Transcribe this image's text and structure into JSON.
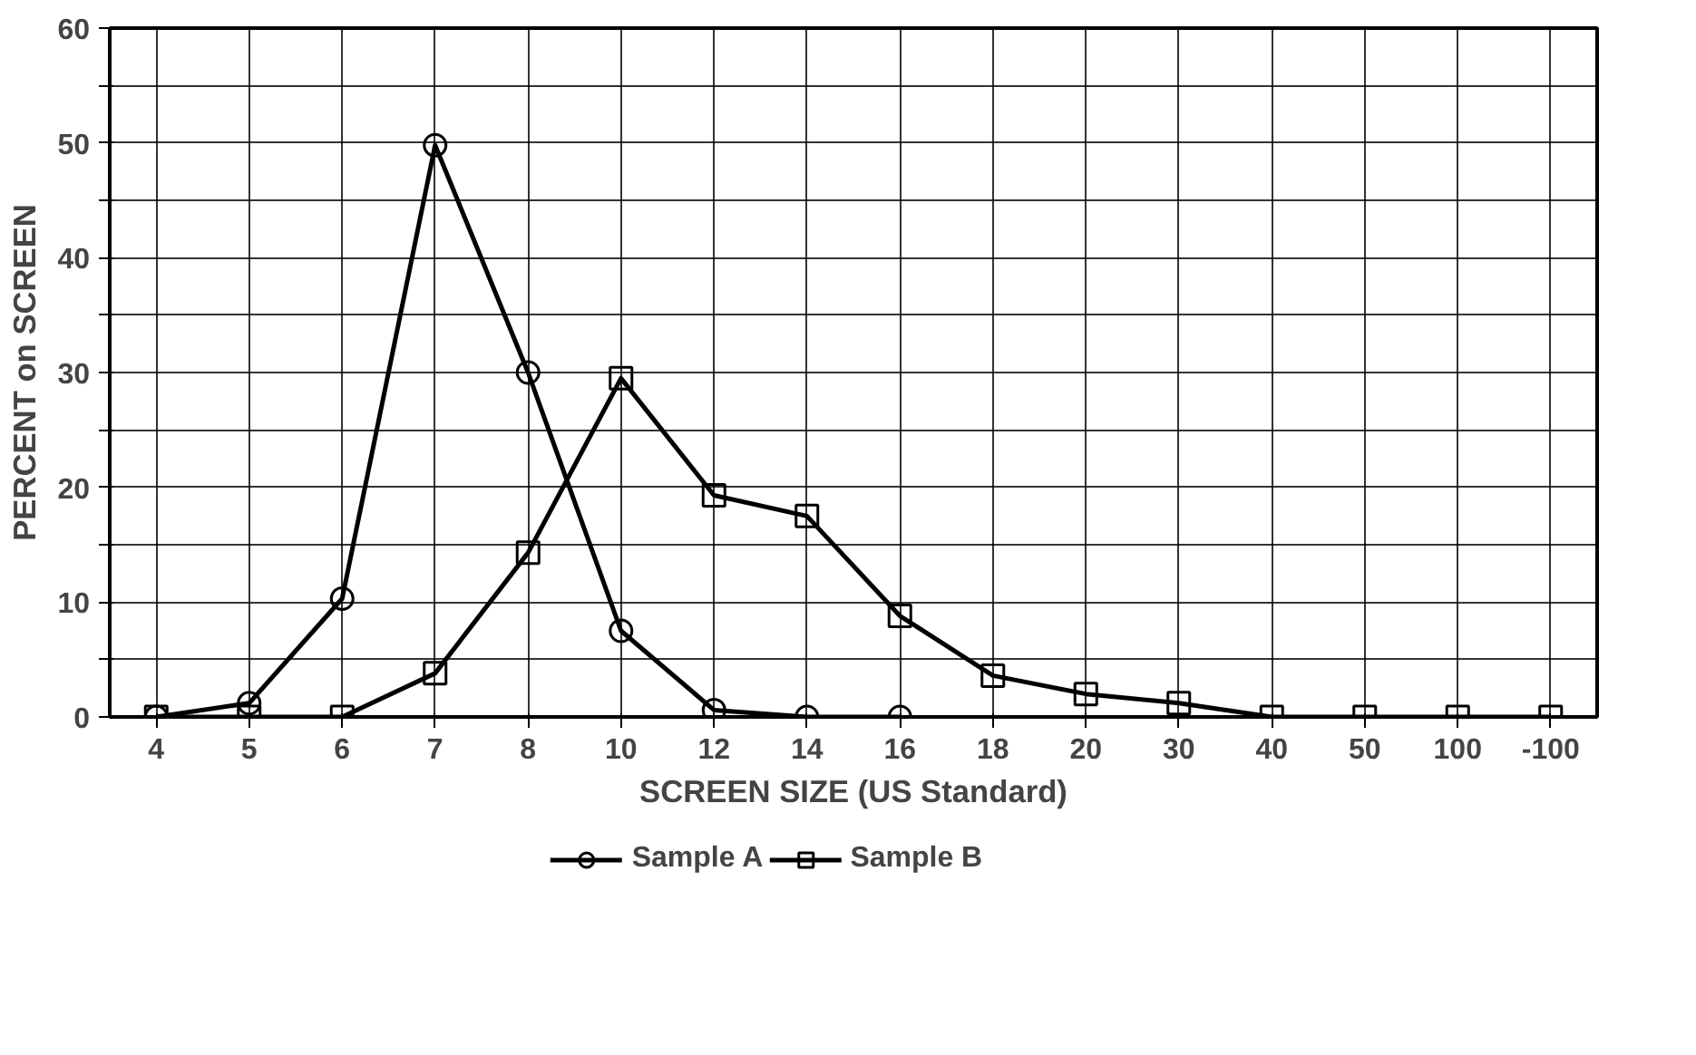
{
  "chart_data": {
    "type": "line",
    "xlabel": "SCREEN SIZE (US Standard)",
    "ylabel": "PERCENT on SCREEN",
    "categories": [
      "4",
      "5",
      "6",
      "7",
      "8",
      "10",
      "12",
      "14",
      "16",
      "18",
      "20",
      "30",
      "40",
      "50",
      "100",
      "-100"
    ],
    "series": [
      {
        "name": "Sample A",
        "color": "#000000",
        "marker": "circle",
        "values": [
          0,
          1.2,
          10.3,
          49.8,
          30,
          7.5,
          0.6,
          0,
          0,
          null,
          null,
          null,
          null,
          null,
          null,
          null
        ]
      },
      {
        "name": "Sample B",
        "color": "#000000",
        "marker": "square",
        "values": [
          0,
          0,
          0,
          3.8,
          14.3,
          29.5,
          19.3,
          17.5,
          8.8,
          3.6,
          2,
          1.2,
          0,
          0,
          0,
          0
        ]
      }
    ],
    "ylim": [
      0,
      60
    ],
    "yticks": [
      0,
      {
        "value": 5,
        "label": null
      },
      10,
      {
        "value": 15,
        "label": null
      },
      20,
      {
        "value": 25,
        "label": null
      },
      30,
      {
        "value": 35,
        "label": null
      },
      40,
      {
        "value": 45,
        "label": null
      },
      50,
      {
        "value": 55,
        "label": null
      },
      60
    ],
    "grid": true,
    "legend": "bottom",
    "line_style": "solid"
  }
}
